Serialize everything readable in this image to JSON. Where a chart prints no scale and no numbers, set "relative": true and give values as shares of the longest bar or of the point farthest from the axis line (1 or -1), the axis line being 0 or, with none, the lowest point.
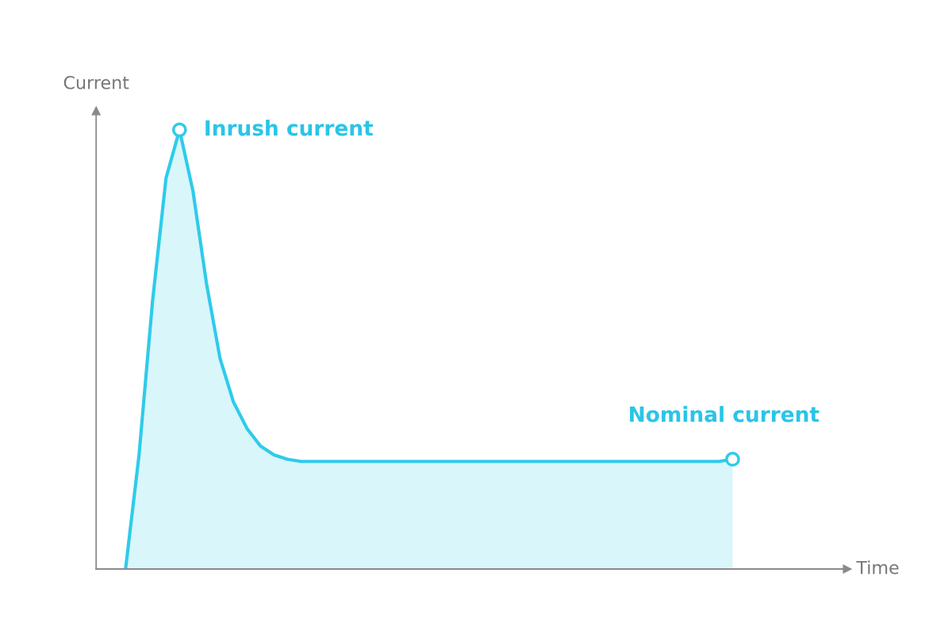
{
  "chart_data": {
    "type": "area",
    "relative": true,
    "ylabel": "Current",
    "categories": [
      null,
      null,
      null,
      null,
      null,
      null,
      null,
      null,
      null,
      null,
      null,
      null,
      null,
      null,
      null,
      null,
      null,
      null,
      null,
      null,
      null,
      null,
      null,
      null,
      null,
      null,
      null,
      null,
      null,
      null,
      null,
      null,
      null,
      null,
      null,
      null,
      null,
      null,
      null,
      null,
      null,
      null,
      null,
      null,
      null,
      null
    ],
    "series": [
      {
        "color": "#2fcbea",
        "values": [
          0,
          0.26,
          0.61,
          0.89,
          1,
          0.86,
          0.65,
          0.48,
          0.38,
          0.32,
          0.28,
          0.26,
          0.25,
          0.245,
          0.245,
          0.245,
          0.245,
          0.245,
          0.245,
          0.245,
          0.245,
          0.245,
          0.245,
          0.245,
          0.245,
          0.245,
          0.245,
          0.245,
          0.245,
          0.245,
          0.245,
          0.245,
          0.245,
          0.245,
          0.245,
          0.245,
          0.245,
          0.245,
          0.245,
          0.245,
          0.245,
          0.245,
          0.245,
          0.245,
          0.245,
          0.25
        ]
      }
    ],
    "annotations": [
      "Inrush current",
      "Nominal current",
      "Time"
    ]
  }
}
